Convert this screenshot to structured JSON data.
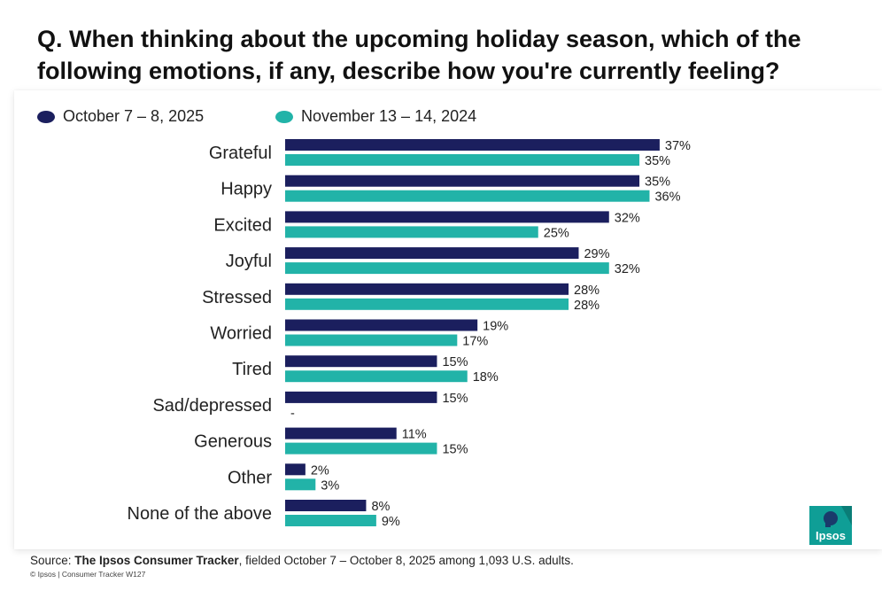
{
  "title": "Q. When thinking about the upcoming holiday season, which of the following emotions, if any, describe how you're currently feeling?",
  "legend": [
    {
      "name": "October 7 – 8, 2025",
      "color": "#1b1f5e"
    },
    {
      "name": "November 13 – 14, 2024",
      "color": "#22b3a8"
    }
  ],
  "chart_data": {
    "type": "bar",
    "orientation": "horizontal",
    "categories": [
      "Grateful",
      "Happy",
      "Excited",
      "Joyful",
      "Stressed",
      "Worried",
      "Tired",
      "Sad/depressed",
      "Generous",
      "Other",
      "None of the above"
    ],
    "series": [
      {
        "name": "October 7 – 8, 2025",
        "color": "#1b1f5e",
        "values": [
          37,
          35,
          32,
          29,
          28,
          19,
          15,
          15,
          11,
          2,
          8
        ],
        "labels": [
          "37%",
          "35%",
          "32%",
          "29%",
          "28%",
          "19%",
          "15%",
          "15%",
          "11%",
          "2%",
          "8%"
        ]
      },
      {
        "name": "November 13 – 14, 2024",
        "color": "#22b3a8",
        "values": [
          35,
          36,
          25,
          32,
          28,
          17,
          18,
          null,
          15,
          3,
          9
        ],
        "labels": [
          "35%",
          "36%",
          "25%",
          "32%",
          "28%",
          "17%",
          "18%",
          "-",
          "15%",
          "3%",
          "9%"
        ]
      }
    ],
    "xlim": [
      0,
      40
    ],
    "unit": "%"
  },
  "source": {
    "prefix": "Source: ",
    "name": "The Ipsos Consumer Tracker",
    "suffix": ", fielded October 7 – October 8, 2025 among 1,093 U.S. adults."
  },
  "copyright": "© Ipsos | Consumer Tracker W127",
  "logo": {
    "text": "Ipsos",
    "color": "#0f9e96"
  }
}
